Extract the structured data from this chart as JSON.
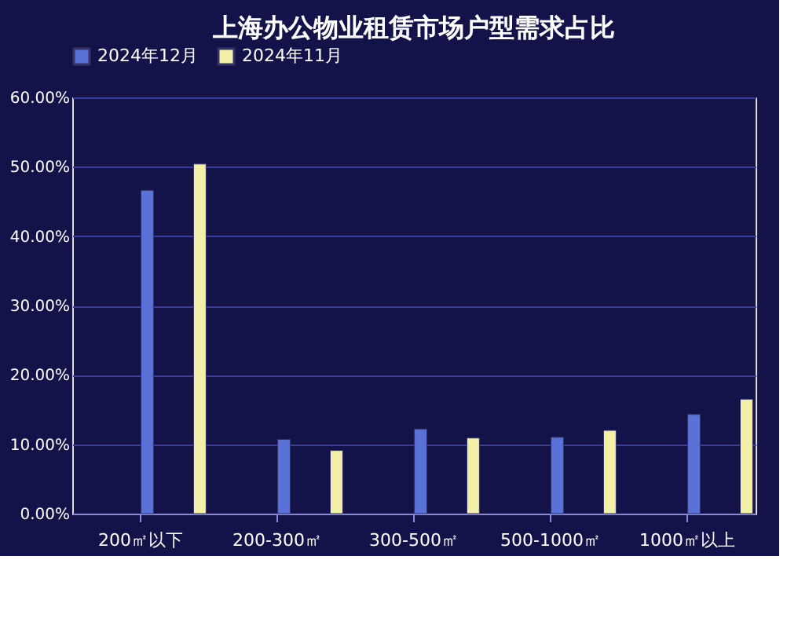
{
  "chart_data": {
    "type": "bar",
    "title": "上海办公物业租赁市场户型需求占比",
    "categories": [
      "200㎡以下",
      "200-300㎡",
      "300-500㎡",
      "500-1000㎡",
      "1000㎡以上"
    ],
    "series": [
      {
        "name": "2024年12月",
        "color": "#5a72d8",
        "values": [
          46.6,
          10.7,
          12.2,
          11.0,
          14.3
        ]
      },
      {
        "name": "2024年11月",
        "color": "#f2f0a8",
        "values": [
          50.4,
          9.1,
          10.9,
          12.0,
          16.5
        ]
      }
    ],
    "ylim": [
      0,
      60
    ],
    "yticks": [
      {
        "value": 0,
        "label": "0.00%"
      },
      {
        "value": 10,
        "label": "10.00%"
      },
      {
        "value": 20,
        "label": "20.00%"
      },
      {
        "value": 30,
        "label": "30.00%"
      },
      {
        "value": 40,
        "label": "40.00%"
      },
      {
        "value": 50,
        "label": "50.00%"
      },
      {
        "value": 60,
        "label": "60.00%"
      }
    ],
    "grid": "y",
    "legend": "top"
  }
}
